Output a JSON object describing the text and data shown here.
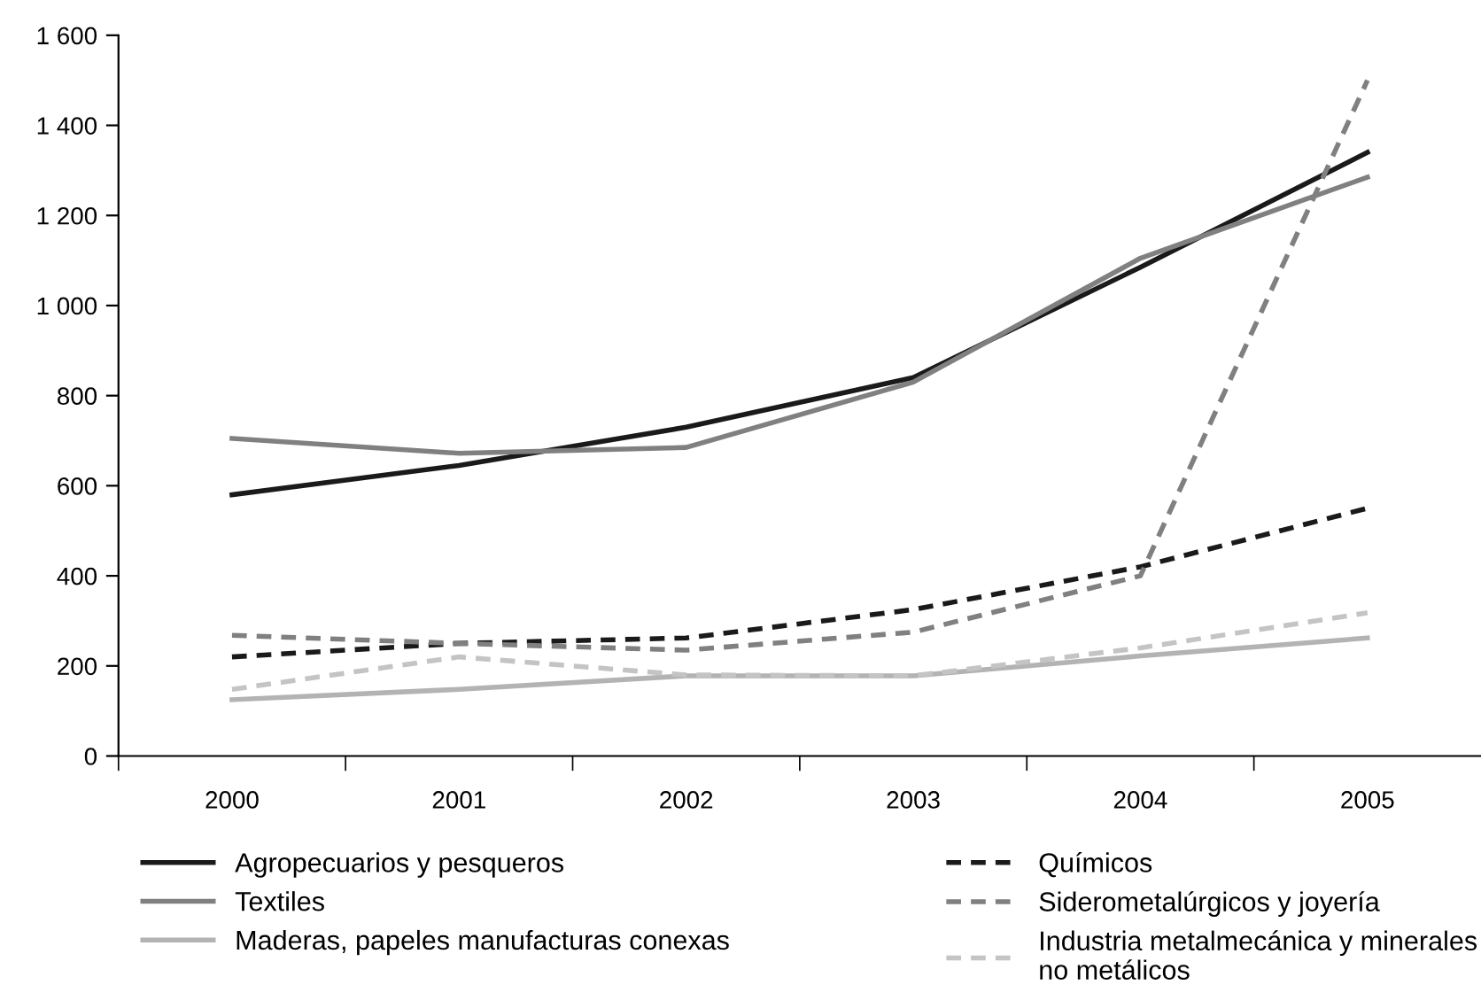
{
  "chart_data": {
    "type": "line",
    "categories": [
      "2000",
      "2001",
      "2002",
      "2003",
      "2004",
      "2005"
    ],
    "ylim": [
      0,
      1600
    ],
    "yticks": [
      0,
      {
        "value": 200,
        "label": "200"
      },
      {
        "value": 400,
        "label": "400"
      },
      {
        "value": 600,
        "label": "600"
      },
      {
        "value": 800,
        "label": "800"
      },
      {
        "value": 1000,
        "label": "1 000"
      },
      {
        "value": 1200,
        "label": "1 200"
      },
      {
        "value": 1400,
        "label": "1 400"
      },
      {
        "value": 1600,
        "label": "1 600"
      }
    ],
    "grid": false,
    "legend": "bottom",
    "marker": "none",
    "series": [
      {
        "name": "Agropecuarios y pesqueros",
        "color": "#1a1a1a",
        "line_style": "solid",
        "values": [
          580,
          645,
          730,
          840,
          1085,
          1340
        ]
      },
      {
        "name": "Textiles",
        "color": "#808080",
        "line_style": "solid",
        "values": [
          705,
          672,
          685,
          830,
          1105,
          1285
        ]
      },
      {
        "name": "Maderas, papeles manufacturas conexas",
        "color": "#b3b3b3",
        "line_style": "solid",
        "values": [
          125,
          148,
          178,
          178,
          222,
          262
        ]
      },
      {
        "name": "Químicos",
        "color": "#1a1a1a",
        "line_style": "dashed",
        "values": [
          220,
          250,
          262,
          325,
          420,
          550
        ]
      },
      {
        "name": "Siderometalúrgicos y joyería",
        "color": "#808080",
        "line_style": "dashed",
        "values": [
          268,
          250,
          235,
          275,
          400,
          1500
        ]
      },
      {
        "name": "Industria metalmecánica y minerales\nno metálicos",
        "color": "#c4c4c4",
        "line_style": "dashed",
        "values": [
          148,
          220,
          180,
          178,
          240,
          318
        ]
      }
    ]
  }
}
